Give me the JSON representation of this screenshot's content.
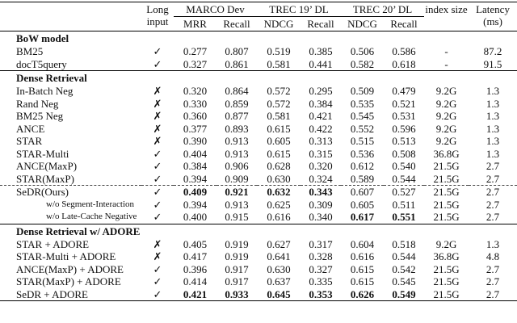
{
  "header": {
    "long_input": "Long input",
    "groups": [
      "MARCO Dev",
      "TREC 19’ DL",
      "TREC 20’ DL"
    ],
    "metrics": [
      "MRR",
      "Recall",
      "NDCG",
      "Recall",
      "NDCG",
      "Recall"
    ],
    "index_size": "index size",
    "latency": "Latency (ms)"
  },
  "sections": [
    {
      "title": "BoW model",
      "rows": [
        {
          "cells": [
            "BM25",
            "✓",
            "0.277",
            "0.807",
            "0.519",
            "0.385",
            "0.506",
            "0.586",
            "-",
            "87.2"
          ]
        },
        {
          "cells": [
            "docT5query",
            "✓",
            "0.327",
            "0.861",
            "0.581",
            "0.441",
            "0.582",
            "0.618",
            "-",
            "91.5"
          ]
        }
      ]
    },
    {
      "title": "Dense Retrieval",
      "rows": [
        {
          "cells": [
            "In-Batch Neg",
            "✗",
            "0.320",
            "0.864",
            "0.572",
            "0.295",
            "0.509",
            "0.479",
            "9.2G",
            "1.3"
          ]
        },
        {
          "cells": [
            "Rand Neg",
            "✗",
            "0.330",
            "0.859",
            "0.572",
            "0.384",
            "0.535",
            "0.521",
            "9.2G",
            "1.3"
          ]
        },
        {
          "cells": [
            "BM25 Neg",
            "✗",
            "0.360",
            "0.877",
            "0.581",
            "0.421",
            "0.545",
            "0.531",
            "9.2G",
            "1.3"
          ]
        },
        {
          "cells": [
            "ANCE",
            "✗",
            "0.377",
            "0.893",
            "0.615",
            "0.422",
            "0.552",
            "0.596",
            "9.2G",
            "1.3"
          ]
        },
        {
          "cells": [
            "STAR",
            "✗",
            "0.390",
            "0.913",
            "0.605",
            "0.313",
            "0.515",
            "0.513",
            "9.2G",
            "1.3"
          ]
        },
        {
          "cells": [
            "STAR-Multi",
            "✓",
            "0.404",
            "0.913",
            "0.615",
            "0.315",
            "0.536",
            "0.508",
            "36.8G",
            "1.3"
          ]
        },
        {
          "cells": [
            "ANCE(MaxP)",
            "✓",
            "0.384",
            "0.906",
            "0.628",
            "0.320",
            "0.612",
            "0.540",
            "21.5G",
            "2.7"
          ]
        },
        {
          "cells": [
            "STAR(MaxP)",
            "✓",
            "0.394",
            "0.909",
            "0.630",
            "0.324",
            "0.589",
            "0.544",
            "21.5G",
            "2.7"
          ]
        },
        {
          "cells": [
            "SeDR(Ours)",
            "✓",
            "0.409",
            "0.921",
            "0.632",
            "0.343",
            "0.607",
            "0.527",
            "21.5G",
            "2.7"
          ],
          "bold": [
            2,
            3,
            4,
            5
          ],
          "dashed_before": true
        },
        {
          "cells": [
            "w/o Segment-Interaction",
            "✓",
            "0.394",
            "0.913",
            "0.625",
            "0.309",
            "0.605",
            "0.511",
            "21.5G",
            "2.7"
          ],
          "indent": true
        },
        {
          "cells": [
            "w/o Late-Cache Negative",
            "✓",
            "0.400",
            "0.915",
            "0.616",
            "0.340",
            "0.617",
            "0.551",
            "21.5G",
            "2.7"
          ],
          "indent": true,
          "bold": [
            6,
            7
          ]
        }
      ]
    },
    {
      "title": "Dense Retrieval w/ ADORE",
      "rows": [
        {
          "cells": [
            "STAR + ADORE",
            "✗",
            "0.405",
            "0.919",
            "0.627",
            "0.317",
            "0.604",
            "0.518",
            "9.2G",
            "1.3"
          ]
        },
        {
          "cells": [
            "STAR-Multi + ADORE",
            "✗",
            "0.417",
            "0.919",
            "0.641",
            "0.328",
            "0.616",
            "0.544",
            "36.8G",
            "4.8"
          ]
        },
        {
          "cells": [
            "ANCE(MaxP) + ADORE",
            "✓",
            "0.396",
            "0.917",
            "0.630",
            "0.327",
            "0.615",
            "0.542",
            "21.5G",
            "2.7"
          ]
        },
        {
          "cells": [
            "STAR(MaxP) + ADORE",
            "✓",
            "0.414",
            "0.917",
            "0.637",
            "0.335",
            "0.615",
            "0.545",
            "21.5G",
            "2.7"
          ]
        },
        {
          "cells": [
            "SeDR + ADORE",
            "✓",
            "0.421",
            "0.933",
            "0.645",
            "0.353",
            "0.626",
            "0.549",
            "21.5G",
            "2.7"
          ],
          "bold": [
            2,
            3,
            4,
            5,
            6,
            7
          ]
        }
      ]
    }
  ]
}
